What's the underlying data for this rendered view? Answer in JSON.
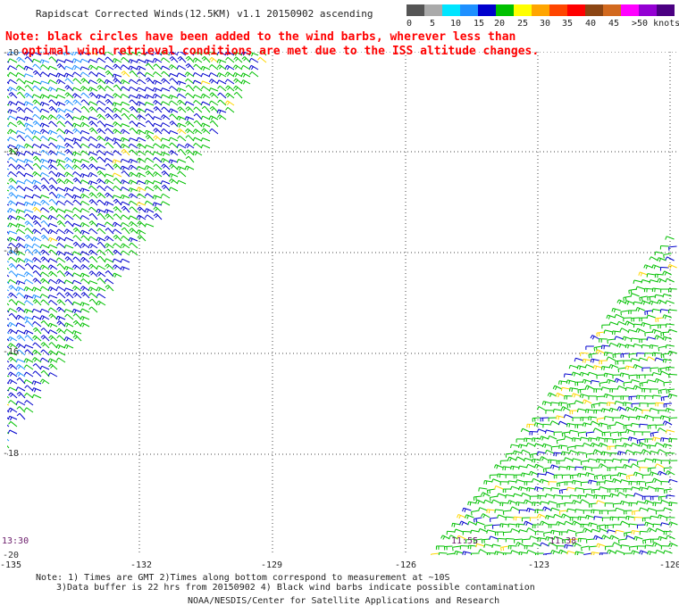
{
  "title": "Rapidscat Corrected Winds(12.5KM) v1.1 20150902 ascending",
  "note_lines": [
    "Note: black circles have been added to the wind barbs, wherever less than",
    "optimal wind retrieval conditions are met due to the ISS altitude changes."
  ],
  "colorbar": {
    "swatches": [
      "#555555",
      "#aaaaaa",
      "#00e5ff",
      "#1e90ff",
      "#0000cd",
      "#00c000",
      "#ffff00",
      "#ffa500",
      "#ff4500",
      "#ff0000",
      "#8b4513",
      "#d2691e",
      "#ff00ff",
      "#9400d3",
      "#4b0082"
    ],
    "labels": [
      "0",
      "5",
      "10",
      "15",
      "20",
      "25",
      "30",
      "35",
      "40",
      "45",
      ">50 knots"
    ]
  },
  "map": {
    "lat_labels": [
      "-10",
      "-12",
      "-14",
      "-16",
      "-18",
      "-20"
    ],
    "lon_labels": [
      "-135",
      "-132",
      "-129",
      "-126",
      "-123",
      "-120"
    ],
    "time_labels": [
      "13:30",
      "11:55",
      "11:38"
    ]
  },
  "footnote": {
    "line1": "Note: 1) Times are GMT 2)Times along bottom correspond to measurement at ~10S",
    "line2": "3)Data buffer is 22 hrs from 20150902 4) Black wind barbs indicate possible contamination"
  },
  "credit": "NOAA/NESDIS/Center for Satellite Applications and Research"
}
